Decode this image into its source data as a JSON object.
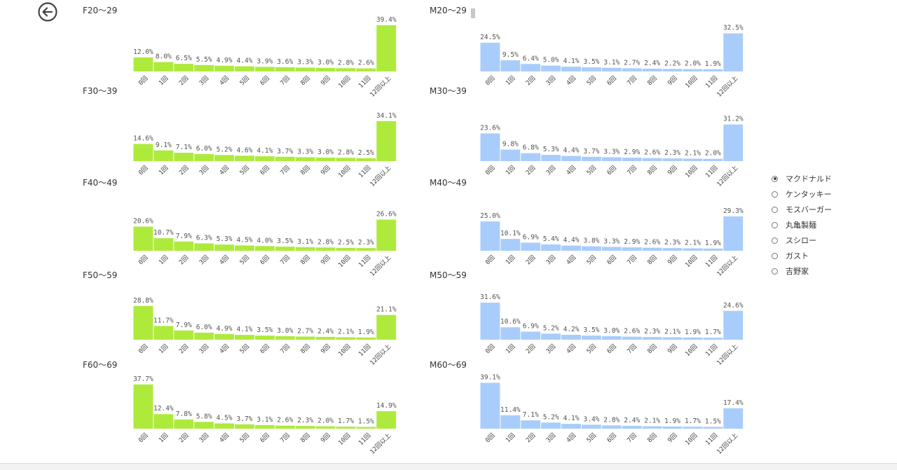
{
  "colors": {
    "female": "#aeea3c",
    "male": "#a9cdfb"
  },
  "icons": {
    "back": "arrow-left-circle-icon"
  },
  "legend": {
    "items": [
      {
        "label": "マクドナルド",
        "selected": true
      },
      {
        "label": "ケンタッキー",
        "selected": false
      },
      {
        "label": "モスバーガー",
        "selected": false
      },
      {
        "label": "丸亀製麺",
        "selected": false
      },
      {
        "label": "スシロー",
        "selected": false
      },
      {
        "label": "ガスト",
        "selected": false
      },
      {
        "label": "吉野家",
        "selected": false
      }
    ]
  },
  "chart_data": [
    {
      "type": "bar",
      "title": "F20～29",
      "group": "female",
      "categories": [
        "0回",
        "1回",
        "2回",
        "3回",
        "4回",
        "5回",
        "6回",
        "7回",
        "8回",
        "9回",
        "10回",
        "11回",
        "12回以上"
      ],
      "values": [
        12.0,
        8.0,
        6.5,
        5.5,
        4.9,
        4.4,
        3.9,
        3.6,
        3.3,
        3.0,
        2.8,
        2.6,
        39.4
      ],
      "value_suffix": "%"
    },
    {
      "type": "bar",
      "title": "F30～39",
      "group": "female",
      "categories": [
        "0回",
        "1回",
        "2回",
        "3回",
        "4回",
        "5回",
        "6回",
        "7回",
        "8回",
        "9回",
        "10回",
        "11回",
        "12回以上"
      ],
      "values": [
        14.6,
        9.1,
        7.1,
        6.0,
        5.2,
        4.6,
        4.1,
        3.7,
        3.3,
        3.0,
        2.8,
        2.5,
        34.1
      ],
      "value_suffix": "%"
    },
    {
      "type": "bar",
      "title": "F40～49",
      "group": "female",
      "categories": [
        "0回",
        "1回",
        "2回",
        "3回",
        "4回",
        "5回",
        "6回",
        "7回",
        "8回",
        "9回",
        "10回",
        "11回",
        "12回以上"
      ],
      "values": [
        20.6,
        10.7,
        7.9,
        6.3,
        5.3,
        4.5,
        4.0,
        3.5,
        3.1,
        2.8,
        2.5,
        2.3,
        26.6
      ],
      "value_suffix": "%"
    },
    {
      "type": "bar",
      "title": "F50～59",
      "group": "female",
      "categories": [
        "0回",
        "1回",
        "2回",
        "3回",
        "4回",
        "5回",
        "6回",
        "7回",
        "8回",
        "9回",
        "10回",
        "11回",
        "12回以上"
      ],
      "values": [
        28.8,
        11.7,
        7.9,
        6.0,
        4.9,
        4.1,
        3.5,
        3.0,
        2.7,
        2.4,
        2.1,
        1.9,
        21.1
      ],
      "value_suffix": "%"
    },
    {
      "type": "bar",
      "title": "F60～69",
      "group": "female",
      "categories": [
        "0回",
        "1回",
        "2回",
        "3回",
        "4回",
        "5回",
        "6回",
        "7回",
        "8回",
        "9回",
        "10回",
        "11回",
        "12回以上"
      ],
      "values": [
        37.7,
        12.4,
        7.8,
        5.8,
        4.5,
        3.7,
        3.1,
        2.6,
        2.3,
        2.0,
        1.7,
        1.5,
        14.9
      ],
      "value_suffix": "%"
    },
    {
      "type": "bar",
      "title": "M20～29",
      "group": "male",
      "categories": [
        "0回",
        "1回",
        "2回",
        "3回",
        "4回",
        "5回",
        "6回",
        "7回",
        "8回",
        "9回",
        "10回",
        "11回",
        "12回以上"
      ],
      "values": [
        24.5,
        9.5,
        6.4,
        5.0,
        4.1,
        3.5,
        3.1,
        2.7,
        2.4,
        2.2,
        2.0,
        1.9,
        32.5
      ],
      "value_suffix": "%"
    },
    {
      "type": "bar",
      "title": "M30～39",
      "group": "male",
      "categories": [
        "0回",
        "1回",
        "2回",
        "3回",
        "4回",
        "5回",
        "6回",
        "7回",
        "8回",
        "9回",
        "10回",
        "11回",
        "12回以上"
      ],
      "values": [
        23.6,
        9.8,
        6.8,
        5.3,
        4.4,
        3.7,
        3.3,
        2.9,
        2.6,
        2.3,
        2.1,
        2.0,
        31.2
      ],
      "value_suffix": "%"
    },
    {
      "type": "bar",
      "title": "M40～49",
      "group": "male",
      "categories": [
        "0回",
        "1回",
        "2回",
        "3回",
        "4回",
        "5回",
        "6回",
        "7回",
        "8回",
        "9回",
        "10回",
        "11回",
        "12回以上"
      ],
      "values": [
        25.0,
        10.1,
        6.9,
        5.4,
        4.4,
        3.8,
        3.3,
        2.9,
        2.6,
        2.3,
        2.1,
        1.9,
        29.3
      ],
      "value_suffix": "%"
    },
    {
      "type": "bar",
      "title": "M50～59",
      "group": "male",
      "categories": [
        "0回",
        "1回",
        "2回",
        "3回",
        "4回",
        "5回",
        "6回",
        "7回",
        "8回",
        "9回",
        "10回",
        "11回",
        "12回以上"
      ],
      "values": [
        31.6,
        10.6,
        6.9,
        5.2,
        4.2,
        3.5,
        3.0,
        2.6,
        2.3,
        2.1,
        1.9,
        1.7,
        24.6
      ],
      "value_suffix": "%"
    },
    {
      "type": "bar",
      "title": "M60～69",
      "group": "male",
      "categories": [
        "0回",
        "1回",
        "2回",
        "3回",
        "4回",
        "5回",
        "6回",
        "7回",
        "8回",
        "9回",
        "10回",
        "11回",
        "12回以上"
      ],
      "values": [
        39.1,
        11.4,
        7.1,
        5.2,
        4.1,
        3.4,
        2.8,
        2.4,
        2.1,
        1.9,
        1.7,
        1.5,
        17.4
      ],
      "value_suffix": "%"
    }
  ]
}
